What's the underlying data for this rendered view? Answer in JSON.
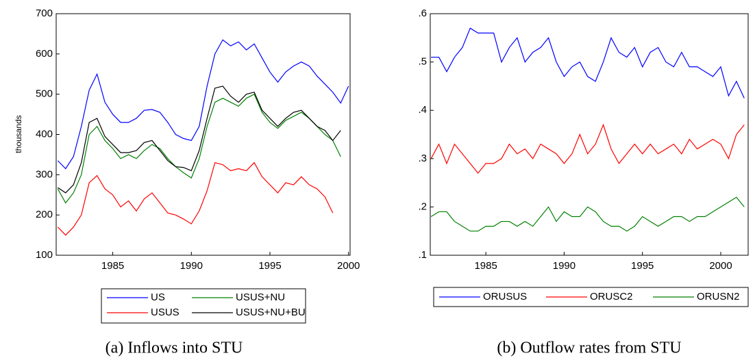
{
  "chart_data": [
    {
      "type": "line",
      "title": "(a) Inflows into STU",
      "ylabel": "thousands",
      "x": [
        1981.5,
        1982,
        1982.5,
        1983,
        1983.5,
        1984,
        1984.5,
        1985,
        1985.5,
        1986,
        1986.5,
        1987,
        1987.5,
        1988,
        1988.5,
        1989,
        1989.5,
        1990,
        1990.5,
        1991,
        1991.5,
        1992,
        1992.5,
        1993,
        1993.5,
        1994,
        1994.5,
        1995,
        1995.5,
        1996,
        1996.5,
        1997,
        1997.5,
        1998,
        1998.5,
        1999,
        1999.5,
        2000
      ],
      "series": [
        {
          "name": "US",
          "color": "#0000ff",
          "values": [
            335,
            315,
            345,
            420,
            510,
            550,
            480,
            450,
            430,
            430,
            440,
            460,
            462,
            455,
            430,
            400,
            390,
            385,
            420,
            520,
            600,
            635,
            620,
            630,
            610,
            625,
            590,
            555,
            530,
            555,
            570,
            580,
            570,
            545,
            525,
            505,
            478,
            520
          ]
        },
        {
          "name": "USUS",
          "color": "#ff0000",
          "values": [
            170,
            150,
            170,
            200,
            280,
            298,
            265,
            250,
            220,
            235,
            210,
            240,
            255,
            230,
            205,
            200,
            190,
            178,
            210,
            260,
            330,
            325,
            310,
            315,
            310,
            330,
            295,
            275,
            255,
            280,
            275,
            295,
            275,
            265,
            245,
            205,
            null,
            null
          ]
        },
        {
          "name": "USUS+NU",
          "color": "#008000",
          "values": [
            265,
            230,
            255,
            300,
            400,
            420,
            385,
            365,
            340,
            350,
            340,
            360,
            375,
            365,
            340,
            320,
            305,
            292,
            340,
            420,
            480,
            490,
            480,
            470,
            490,
            500,
            455,
            430,
            415,
            435,
            445,
            455,
            440,
            420,
            400,
            385,
            345,
            null
          ]
        },
        {
          "name": "USUS+NU+BU",
          "color": "#000000",
          "values": [
            268,
            255,
            275,
            330,
            430,
            440,
            395,
            375,
            355,
            355,
            360,
            380,
            385,
            360,
            335,
            320,
            318,
            310,
            360,
            440,
            515,
            520,
            495,
            480,
            500,
            505,
            460,
            440,
            420,
            440,
            455,
            460,
            440,
            420,
            410,
            385,
            410,
            null
          ]
        }
      ],
      "xlim": [
        1981.4,
        2000.1
      ],
      "xticks": [
        1985,
        1990,
        1995,
        2000
      ],
      "ylim": [
        100,
        700
      ],
      "yticks": [
        100,
        200,
        300,
        400,
        500,
        600,
        700
      ],
      "legend": "bottom"
    },
    {
      "type": "line",
      "title": "(b) Outflow rates from STU",
      "x": [
        1981.5,
        1982,
        1982.5,
        1983,
        1983.5,
        1984,
        1984.5,
        1985,
        1985.5,
        1986,
        1986.5,
        1987,
        1987.5,
        1988,
        1988.5,
        1989,
        1989.5,
        1990,
        1990.5,
        1991,
        1991.5,
        1992,
        1992.5,
        1993,
        1993.5,
        1994,
        1994.5,
        1995,
        1995.5,
        1996,
        1996.5,
        1997,
        1997.5,
        1998,
        1998.5,
        1999,
        1999.5,
        2000,
        2000.5,
        2001,
        2001.5
      ],
      "series": [
        {
          "name": "ORUSUS",
          "color": "#0000ff",
          "values": [
            0.51,
            0.51,
            0.48,
            0.51,
            0.53,
            0.57,
            0.56,
            0.56,
            0.56,
            0.5,
            0.53,
            0.55,
            0.5,
            0.52,
            0.53,
            0.55,
            0.5,
            0.47,
            0.49,
            0.5,
            0.47,
            0.46,
            0.5,
            0.55,
            0.52,
            0.51,
            0.53,
            0.49,
            0.52,
            0.53,
            0.5,
            0.49,
            0.52,
            0.49,
            0.49,
            0.48,
            0.47,
            0.49,
            0.43,
            0.46,
            0.425
          ]
        },
        {
          "name": "ORUSC2",
          "color": "#ff0000",
          "values": [
            0.3,
            0.33,
            0.29,
            0.33,
            0.31,
            0.29,
            0.27,
            0.29,
            0.29,
            0.3,
            0.33,
            0.31,
            0.32,
            0.3,
            0.33,
            0.32,
            0.31,
            0.29,
            0.31,
            0.35,
            0.31,
            0.33,
            0.37,
            0.32,
            0.29,
            0.31,
            0.33,
            0.31,
            0.33,
            0.31,
            0.32,
            0.33,
            0.31,
            0.34,
            0.32,
            0.33,
            0.34,
            0.33,
            0.3,
            0.35,
            0.37
          ]
        },
        {
          "name": "ORUSN2",
          "color": "#008000",
          "values": [
            0.18,
            0.19,
            0.19,
            0.17,
            0.16,
            0.15,
            0.15,
            0.16,
            0.16,
            0.17,
            0.17,
            0.16,
            0.17,
            0.16,
            0.18,
            0.2,
            0.17,
            0.19,
            0.18,
            0.18,
            0.2,
            0.19,
            0.17,
            0.16,
            0.16,
            0.15,
            0.16,
            0.18,
            0.17,
            0.16,
            0.17,
            0.18,
            0.18,
            0.17,
            0.18,
            0.18,
            0.19,
            0.2,
            0.21,
            0.22,
            0.2
          ]
        }
      ],
      "xlim": [
        1981.45,
        2001.75
      ],
      "xticks": [
        1985,
        1990,
        1995,
        2000
      ],
      "ylim": [
        0.1,
        0.6
      ],
      "yticks": [
        {
          "value": 0.1,
          "label": ".1"
        },
        {
          "value": 0.2,
          "label": ".2"
        },
        {
          "value": 0.3,
          "label": ".3"
        },
        {
          "value": 0.4,
          "label": ".4"
        },
        {
          "value": 0.5,
          "label": ".5"
        },
        {
          "value": 0.6,
          "label": ".6"
        }
      ],
      "legend": "bottom"
    }
  ]
}
